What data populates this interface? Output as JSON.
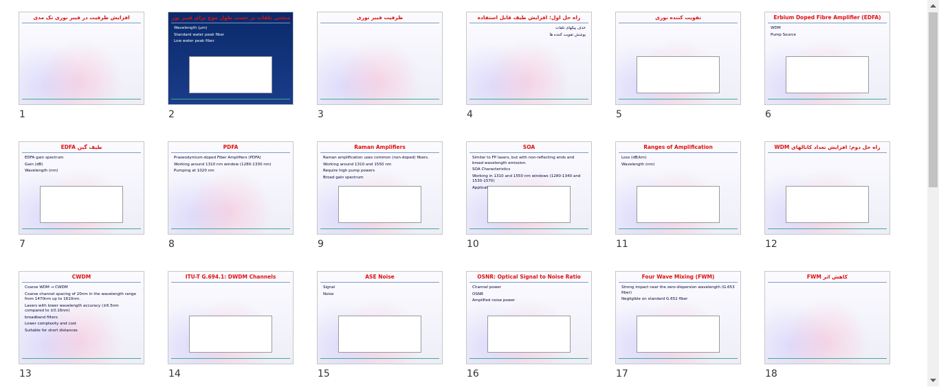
{
  "slides": [
    {
      "number": 1,
      "title": "افزایش ظرفیت در فیبر نوری تک مدی",
      "lines": []
    },
    {
      "number": 2,
      "title": "منحنی تلفات بر حسب طول موج برای فیبر نوری",
      "lines": [
        "Wavelength (µm)",
        "Standard water peak fiber",
        "Low water peak fiber"
      ]
    },
    {
      "number": 3,
      "title": "ظرفیت فیبر نوری",
      "lines": []
    },
    {
      "number": 4,
      "title": "راه حل اول: افزایش طیف قابل استفاده",
      "lines": [
        "حذف پیکهای تلفات",
        "پوشش تقویت کننده ها"
      ]
    },
    {
      "number": 5,
      "title": "تقویت کننده نوری",
      "lines": []
    },
    {
      "number": 6,
      "title": "Erbium Doped Fibre Amplifier (EDFA)",
      "lines": [
        "WDM",
        "Pump Source"
      ]
    },
    {
      "number": 7,
      "title": "EDFA طیف گین",
      "lines": [
        "EDFA gain spectrum",
        "Gain (dB)",
        "Wavelength (nm)"
      ]
    },
    {
      "number": 8,
      "title": "PDFA",
      "lines": [
        "Praseodymium-doped Fiber Amplifiers (PDFA)",
        "Working around 1310 nm window (1280-1330 nm)",
        "Pumping at 1020 nm"
      ]
    },
    {
      "number": 9,
      "title": "Raman Amplifiers",
      "lines": [
        "Raman amplification uses common (non-doped) fibers.",
        "Working around 1310 and 1550 nm",
        "Require high pump powers",
        "Broad gain spectrum"
      ]
    },
    {
      "number": 10,
      "title": "SOA",
      "lines": [
        "Similar to FP lasers, but with non-reflecting ends and broad wavelength emission.",
        "SOA Characteristics",
        "Working in 1310 and 1550 nm windows (1280-1340 and 1530-1570)",
        "Application in Booster and Pre-Amplifier"
      ]
    },
    {
      "number": 11,
      "title": "Ranges of Amplification",
      "lines": [
        "Loss (dB/km)",
        "Wavelength (nm)"
      ]
    },
    {
      "number": 12,
      "title": "راه حل دوم: افزایش تعداد کانالهای WDM",
      "lines": []
    },
    {
      "number": 13,
      "title": "CWDM",
      "lines": [
        "Coarse WDM → CWDM",
        "Coarse channel spacing of 20nm in the wavelength range from 1470nm up to 1610nm.",
        "Lasers with lower wavelength accuracy (±6.5nm compared to ±0.16nm)",
        "broadband filters",
        "Lower complexity and cost",
        "Suitable for short distances"
      ]
    },
    {
      "number": 14,
      "title": "ITU-T G.694.1: DWDM Channels",
      "lines": []
    },
    {
      "number": 15,
      "title": "ASE Noise",
      "lines": [
        "Signal",
        "Noise"
      ]
    },
    {
      "number": 16,
      "title": "OSNR: Optical Signal to Noise Ratio",
      "lines": [
        "Channel power",
        "OSNR",
        "Amplified noise power"
      ]
    },
    {
      "number": 17,
      "title": "Four Wave Mixing (FWM)",
      "lines": [
        "Strong impact near the zero-dispersion wavelength (G.653 fiber)",
        "Negligible on standard G.652 fiber"
      ]
    },
    {
      "number": 18,
      "title": "FWM کاهش اثر",
      "lines": []
    }
  ]
}
